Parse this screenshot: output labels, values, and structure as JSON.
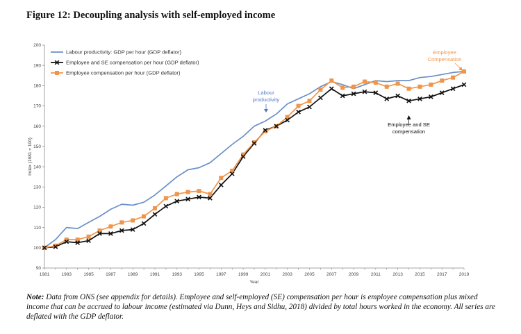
{
  "figure": {
    "title": "Figure 12: Decoupling analysis with self-employed income",
    "note_label": "Note:",
    "note_text": "Data from ONS (see appendix for details). Employee and self-employed (SE) compensation per hour is employee compensation plus mixed income that can be accrued to labour income (estimated via Dunn, Heys and Sidhu, 2018) divided by total hours worked in the economy. All series are deflated with the GDP deflator."
  },
  "chart_data": {
    "type": "line",
    "xlabel": "Year",
    "ylabel": "Index (1981 = 100)",
    "xlim": [
      1981,
      2019
    ],
    "ylim": [
      90,
      200
    ],
    "y_ticks": [
      90,
      100,
      110,
      120,
      130,
      140,
      150,
      160,
      170,
      180,
      190,
      200
    ],
    "x_tick_labels": [
      1981,
      1983,
      1985,
      1987,
      1989,
      1991,
      1993,
      1995,
      1997,
      1999,
      2001,
      2003,
      2005,
      2007,
      2009,
      2011,
      2013,
      2015,
      2017,
      2019
    ],
    "grid": false,
    "legend_position": "top-left",
    "x": [
      1981,
      1982,
      1983,
      1984,
      1985,
      1986,
      1987,
      1988,
      1989,
      1990,
      1991,
      1992,
      1993,
      1994,
      1995,
      1996,
      1997,
      1998,
      1999,
      2000,
      2001,
      2002,
      2003,
      2004,
      2005,
      2006,
      2007,
      2008,
      2009,
      2010,
      2011,
      2012,
      2013,
      2014,
      2015,
      2016,
      2017,
      2018,
      2019
    ],
    "series": [
      {
        "name": "Labour productivity: GDP per hour (GDP deflator)",
        "color": "#6a8fc8",
        "marker": "none",
        "values": [
          100,
          104,
          110,
          109.5,
          112.5,
          115.5,
          119,
          121.5,
          121,
          122.5,
          126,
          130.5,
          135,
          138.5,
          139.5,
          142,
          146.5,
          151,
          155,
          160,
          162.5,
          166,
          171,
          173.5,
          176,
          179.5,
          182,
          180.5,
          178.5,
          180.5,
          182.5,
          182,
          182.5,
          182.5,
          184,
          184.5,
          185.5,
          186.5,
          187
        ]
      },
      {
        "name": "Employee and SE compensation per hour (GDP deflator)",
        "color": "#111111",
        "marker": "x",
        "values": [
          100,
          100.5,
          103,
          102.5,
          103.5,
          107,
          107,
          108.5,
          109,
          112,
          116.5,
          120.5,
          123,
          124,
          125,
          124.5,
          131,
          136.5,
          145,
          151.5,
          158,
          160,
          163,
          167,
          169.5,
          174,
          178.5,
          175,
          176,
          177,
          176.5,
          173.5,
          175,
          172.5,
          173.5,
          174.5,
          176.5,
          178.5,
          180.5
        ]
      },
      {
        "name": "Employee compensation per hour (GDP deflator)",
        "color": "#f0954a",
        "marker": "square",
        "values": [
          100,
          101,
          104,
          104,
          105.5,
          108.5,
          110.5,
          112.5,
          113.5,
          115.5,
          119.5,
          124.5,
          126.5,
          127.5,
          128,
          126.5,
          134.5,
          138,
          146,
          152,
          157.5,
          160,
          164.5,
          170,
          172.5,
          178,
          182.5,
          179,
          179.5,
          182,
          181.5,
          179.5,
          181,
          178.5,
          179.5,
          180.5,
          182.5,
          184,
          187
        ]
      }
    ],
    "annotations": [
      {
        "text": [
          "Labour",
          "productivity"
        ],
        "color": "#4e78c0",
        "series": 0
      },
      {
        "text": [
          "Employee",
          "Compensation"
        ],
        "color": "#f0954a",
        "series": 2
      },
      {
        "text": [
          "Employee and SE",
          "compensation"
        ],
        "color": "#111111",
        "series": 1
      }
    ]
  }
}
